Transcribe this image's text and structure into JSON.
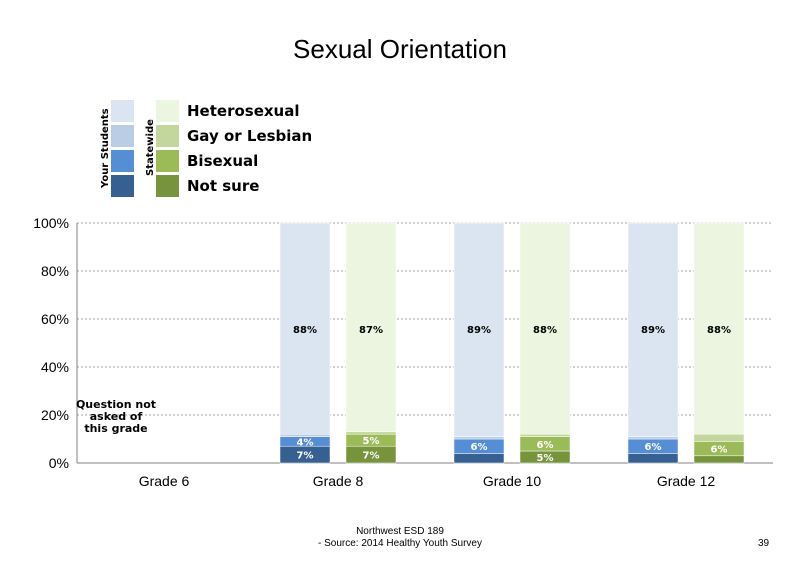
{
  "title": "Sexual Orientation",
  "legend": {
    "your_students": "Your Students",
    "statewide": "Statewide",
    "items": [
      "Heterosexual",
      "Gay or Lesbian",
      "Bisexual",
      "Not sure"
    ]
  },
  "colors": {
    "your_students": [
      "#dbe5f1",
      "#b9cde5",
      "#558ed5",
      "#376092"
    ],
    "statewide": [
      "#ebf5df",
      "#c3d69b",
      "#9bbb59",
      "#77933c"
    ]
  },
  "chart_data": {
    "type": "bar",
    "stacked": true,
    "categories": [
      "Grade 6",
      "Grade 8",
      "Grade 10",
      "Grade 12"
    ],
    "y_ticks": [
      "0%",
      "20%",
      "40%",
      "60%",
      "80%",
      "100%"
    ],
    "ylim": [
      0,
      100
    ],
    "grid": true,
    "legend_position": "top-left",
    "note": {
      "category": "Grade 6",
      "text": [
        "Question not",
        "asked of",
        "this grade"
      ]
    },
    "series": [
      {
        "name": "Your Students",
        "segments": [
          "Not sure",
          "Bisexual",
          "Gay or Lesbian",
          "Heterosexual"
        ],
        "values": [
          null,
          [
            7,
            4,
            1,
            88
          ],
          [
            4,
            6,
            1,
            89
          ],
          [
            4,
            6,
            1,
            89
          ]
        ],
        "labels": [
          null,
          [
            "7%",
            "4%",
            "",
            "88%"
          ],
          [
            "",
            "6%",
            "",
            "89%"
          ],
          [
            "",
            "6%",
            "",
            "89%"
          ]
        ]
      },
      {
        "name": "Statewide",
        "segments": [
          "Not sure",
          "Bisexual",
          "Gay or Lesbian",
          "Heterosexual"
        ],
        "values": [
          null,
          [
            7,
            5,
            1,
            87
          ],
          [
            5,
            6,
            1,
            88
          ],
          [
            3,
            6,
            3,
            88
          ]
        ],
        "labels": [
          null,
          [
            "7%",
            "5%",
            "",
            "87%"
          ],
          [
            "5%",
            "6%",
            "",
            "88%"
          ],
          [
            "",
            "6%",
            "",
            "88%"
          ]
        ]
      }
    ]
  },
  "footer": {
    "line1": "Northwest ESD  189",
    "line2": "- Source: 2014 Healthy  Youth Survey"
  },
  "page_number": "39"
}
